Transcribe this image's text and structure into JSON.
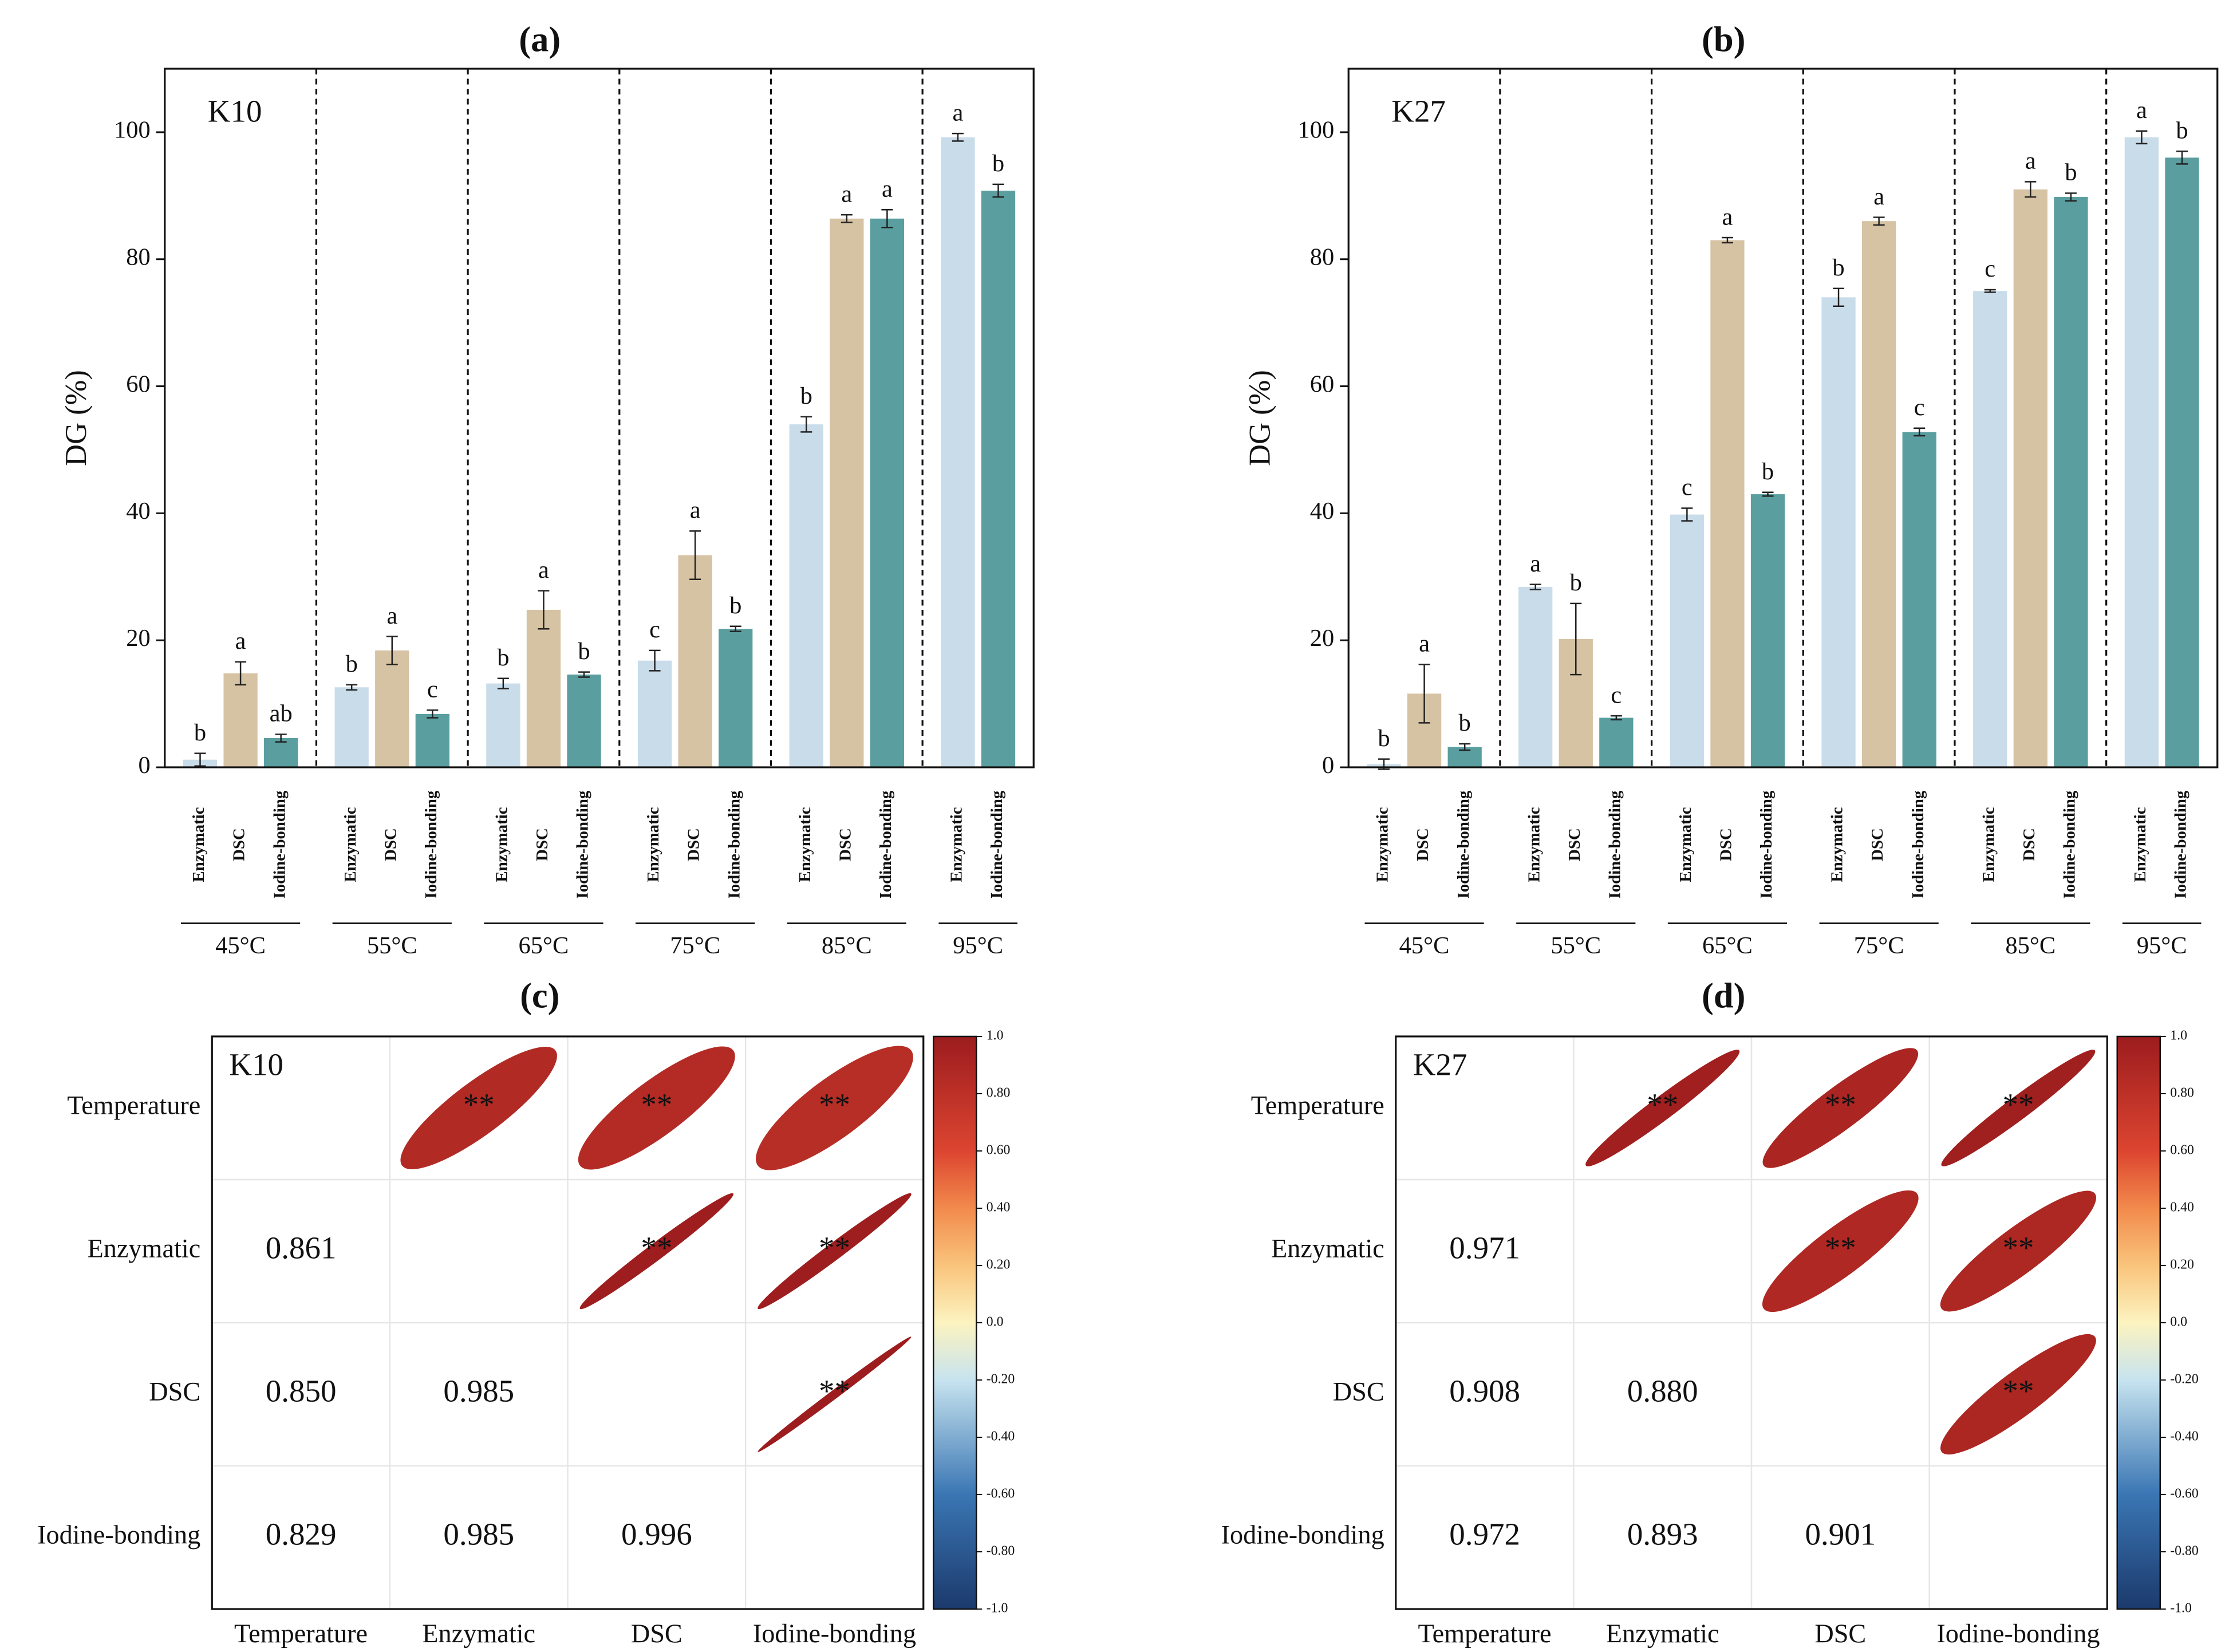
{
  "chart_data": [
    {
      "type": "bar",
      "title": "(a)",
      "annotation": "K10",
      "y_label": "DG (%)",
      "categories": [
        "45°C",
        "55°C",
        "65°C",
        "75°C",
        "85°C",
        "95°C"
      ],
      "ylim": [
        0,
        110
      ],
      "yticks": [
        0,
        20,
        40,
        60,
        80,
        100
      ],
      "series": [
        {
          "name": "Enzymatic",
          "color": "#c9dcea",
          "values": [
            1.2,
            12.6,
            13.2,
            16.8,
            54.0,
            99.2
          ],
          "errors": [
            1.0,
            0.4,
            0.8,
            1.6,
            1.2,
            0.6
          ],
          "letters": [
            "b",
            "b",
            "b",
            "c",
            "b",
            "a"
          ]
        },
        {
          "name": "DSC",
          "color": "#d6c3a3",
          "values": [
            14.8,
            18.4,
            24.8,
            33.4,
            86.4,
            null
          ],
          "errors": [
            1.8,
            2.2,
            3.0,
            3.8,
            0.6,
            null
          ],
          "letters": [
            "a",
            "a",
            "a",
            "a",
            "a",
            null
          ]
        },
        {
          "name": "Iodine-bonding",
          "color": "#5a9e9f",
          "values": [
            4.6,
            8.4,
            14.6,
            21.8,
            86.4,
            90.8
          ],
          "errors": [
            0.6,
            0.6,
            0.4,
            0.4,
            1.4,
            1.0
          ],
          "letters": [
            "ab",
            "c",
            "b",
            "b",
            "a",
            "b"
          ]
        }
      ]
    },
    {
      "type": "bar",
      "title": "(b)",
      "annotation": "K27",
      "y_label": "DG (%)",
      "categories": [
        "45°C",
        "55°C",
        "65°C",
        "75°C",
        "85°C",
        "95°C"
      ],
      "ylim": [
        0,
        110
      ],
      "yticks": [
        0,
        20,
        40,
        60,
        80,
        100
      ],
      "series": [
        {
          "name": "Enzymatic",
          "color": "#c9dcea",
          "values": [
            0.5,
            28.4,
            39.8,
            74.0,
            75.0,
            99.2
          ],
          "errors": [
            0.8,
            0.4,
            1.0,
            1.4,
            0.2,
            1.0
          ],
          "letters": [
            "b",
            "a",
            "c",
            "b",
            "c",
            "a"
          ]
        },
        {
          "name": "DSC",
          "color": "#d6c3a3",
          "values": [
            11.6,
            20.2,
            83.0,
            86.0,
            91.0,
            null
          ],
          "errors": [
            4.6,
            5.6,
            0.4,
            0.6,
            1.2,
            null
          ],
          "letters": [
            "a",
            "b",
            "a",
            "a",
            "a",
            null
          ]
        },
        {
          "name": "Iodine-bonding",
          "color": "#5a9e9f",
          "values": [
            3.2,
            7.8,
            43.0,
            52.8,
            89.8,
            96.0
          ],
          "errors": [
            0.5,
            0.3,
            0.3,
            0.6,
            0.6,
            1.0
          ],
          "letters": [
            "b",
            "c",
            "b",
            "c",
            "b",
            "b"
          ]
        }
      ]
    },
    {
      "type": "correlation",
      "title": "(c)",
      "annotation": "K10",
      "variables": [
        "Temperature",
        "Enzymatic",
        "DSC",
        "Iodine-bonding"
      ],
      "matrix": [
        [],
        [
          0.861
        ],
        [
          0.85,
          0.985
        ],
        [
          0.829,
          0.985,
          0.996
        ]
      ],
      "value_labels": [
        [],
        [
          "0.861"
        ],
        [
          "0.850",
          "0.985"
        ],
        [
          "0.829",
          "0.985",
          "0.996"
        ]
      ],
      "significance": "**",
      "colorbar_lim": [
        -1,
        1
      ],
      "colorbar_ticks": [
        {
          "value": 1,
          "label": "1.0"
        },
        {
          "value": 0.8,
          "label": "0.80"
        },
        {
          "value": 0.6,
          "label": "0.60"
        },
        {
          "value": 0.4,
          "label": "0.40"
        },
        {
          "value": 0.2,
          "label": "0.20"
        },
        {
          "value": 0,
          "label": "0.0"
        },
        {
          "value": -0.2,
          "label": "-0.20"
        },
        {
          "value": -0.4,
          "label": "-0.40"
        },
        {
          "value": -0.6,
          "label": "-0.60"
        },
        {
          "value": -0.8,
          "label": "-0.80"
        },
        {
          "value": -1,
          "label": "-1.0"
        }
      ]
    },
    {
      "type": "correlation",
      "title": "(d)",
      "annotation": "K27",
      "variables": [
        "Temperature",
        "Enzymatic",
        "DSC",
        "Iodine-bonding"
      ],
      "matrix": [
        [],
        [
          0.971
        ],
        [
          0.908,
          0.88
        ],
        [
          0.972,
          0.893,
          0.901
        ]
      ],
      "value_labels": [
        [],
        [
          "0.971"
        ],
        [
          "0.908",
          "0.880"
        ],
        [
          "0.972",
          "0.893",
          "0.901"
        ]
      ],
      "significance": "**",
      "colorbar_lim": [
        -1,
        1
      ],
      "colorbar_ticks": [
        {
          "value": 1,
          "label": "1.0"
        },
        {
          "value": 0.8,
          "label": "0.80"
        },
        {
          "value": 0.6,
          "label": "0.60"
        },
        {
          "value": 0.4,
          "label": "0.40"
        },
        {
          "value": 0.2,
          "label": "0.20"
        },
        {
          "value": 0,
          "label": "0.0"
        },
        {
          "value": -0.2,
          "label": "-0.20"
        },
        {
          "value": -0.4,
          "label": "-0.40"
        },
        {
          "value": -0.6,
          "label": "-0.60"
        },
        {
          "value": -0.8,
          "label": "-0.80"
        },
        {
          "value": -1,
          "label": "-1.0"
        }
      ]
    }
  ]
}
